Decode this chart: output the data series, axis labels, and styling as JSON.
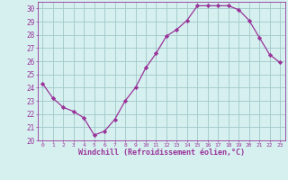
{
  "x": [
    0,
    1,
    2,
    3,
    4,
    5,
    6,
    7,
    8,
    9,
    10,
    11,
    12,
    13,
    14,
    15,
    16,
    17,
    18,
    19,
    20,
    21,
    22,
    23
  ],
  "y": [
    24.3,
    23.2,
    22.5,
    22.2,
    21.7,
    20.4,
    20.7,
    21.6,
    23.0,
    24.0,
    25.5,
    26.6,
    27.9,
    28.4,
    29.1,
    30.2,
    30.2,
    30.2,
    30.2,
    29.9,
    29.1,
    27.8,
    26.5,
    25.9
  ],
  "line_color": "#993399",
  "marker": "D",
  "marker_size": 2.2,
  "background_color": "#d6f0f0",
  "grid_color": "#a0c8c8",
  "xlabel": "Windchill (Refroidissement éolien,°C)",
  "xlabel_color": "#993399",
  "tick_color": "#993399",
  "ylim": [
    20,
    30.5
  ],
  "yticks": [
    20,
    21,
    22,
    23,
    24,
    25,
    26,
    27,
    28,
    29,
    30
  ],
  "xlim": [
    -0.5,
    23.5
  ],
  "xticks": [
    0,
    1,
    2,
    3,
    4,
    5,
    6,
    7,
    8,
    9,
    10,
    11,
    12,
    13,
    14,
    15,
    16,
    17,
    18,
    19,
    20,
    21,
    22,
    23
  ]
}
